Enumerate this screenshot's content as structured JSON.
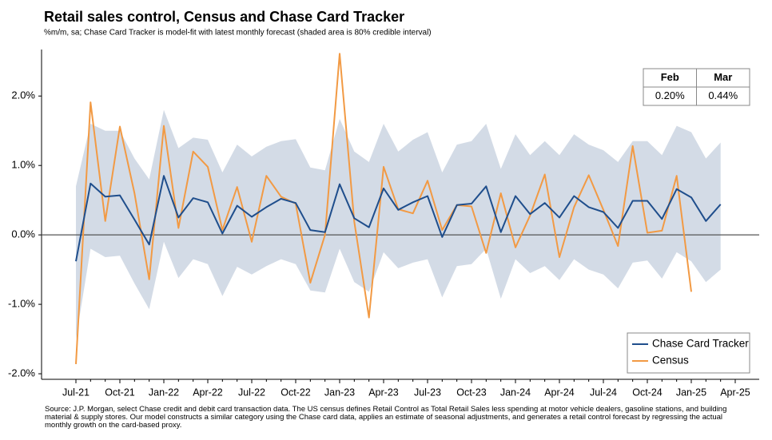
{
  "chart_data": {
    "type": "line",
    "title": "Retail sales control, Census and Chase Card Tracker",
    "subtitle": "%m/m, sa; Chase Card Tracker is model-fit with latest monthly forecast (shaded area is 80% credible interval)",
    "source": "Source: J.P. Morgan, select Chase credit and debit card transaction data. The US census defines Retail Control as Total Retail Sales less spending at motor vehicle dealers, gasoline stations, and building material & supply stores. Our model constructs a similar category using the Chase card data, applies an estimate of seasonal adjustments, and generates a retail control forecast by regressing the actual monthly growth on the card-based proxy.",
    "categories": [
      "Jul-21",
      null,
      null,
      "Oct-21",
      null,
      null,
      "Jan-22",
      null,
      null,
      "Apr-22",
      null,
      null,
      "Jul-22",
      null,
      null,
      "Oct-22",
      null,
      null,
      "Jan-23",
      null,
      null,
      "Apr-23",
      null,
      null,
      "Jul-23",
      null,
      null,
      "Oct-23",
      null,
      null,
      "Jan-24",
      null,
      null,
      "Apr-24",
      null,
      null,
      "Jul-24",
      null,
      null,
      "Oct-24",
      null,
      null,
      "Jan-25",
      null,
      null,
      "Apr-25"
    ],
    "series": [
      {
        "name": "Chase Card Tracker",
        "color": "#1f4e8c",
        "values": [
          -0.38,
          0.74,
          0.55,
          0.57,
          0.22,
          -0.14,
          0.85,
          0.25,
          0.53,
          0.47,
          0.02,
          0.42,
          0.26,
          0.4,
          0.52,
          0.46,
          0.07,
          0.04,
          0.73,
          0.24,
          0.11,
          0.67,
          0.36,
          0.47,
          0.56,
          -0.03,
          0.43,
          0.45,
          0.7,
          0.04,
          0.56,
          0.3,
          0.46,
          0.25,
          0.56,
          0.4,
          0.33,
          0.1,
          0.49,
          0.49,
          0.23,
          0.66,
          0.54,
          0.2,
          0.44,
          null
        ]
      },
      {
        "name": "Census",
        "color": "#f29a44",
        "values": [
          -1.86,
          1.91,
          0.2,
          1.56,
          0.6,
          -0.64,
          1.57,
          0.1,
          1.2,
          0.98,
          0.07,
          0.69,
          -0.1,
          0.85,
          0.55,
          0.45,
          -0.69,
          0.0,
          2.61,
          0.19,
          -1.19,
          0.98,
          0.37,
          0.31,
          0.78,
          0.07,
          0.43,
          0.41,
          -0.26,
          0.6,
          -0.18,
          0.28,
          0.87,
          -0.32,
          0.4,
          0.86,
          0.36,
          -0.16,
          1.28,
          0.03,
          0.06,
          0.85,
          -0.82,
          null,
          null,
          null
        ]
      }
    ],
    "band": {
      "color": "#d3dbe6",
      "upper": [
        0.7,
        1.6,
        1.5,
        1.5,
        1.1,
        0.8,
        1.8,
        1.25,
        1.4,
        1.37,
        0.9,
        1.3,
        1.13,
        1.27,
        1.35,
        1.38,
        0.97,
        0.93,
        1.67,
        1.2,
        1.05,
        1.6,
        1.2,
        1.37,
        1.48,
        0.9,
        1.3,
        1.35,
        1.6,
        0.95,
        1.45,
        1.15,
        1.35,
        1.15,
        1.45,
        1.3,
        1.22,
        1.05,
        1.35,
        1.35,
        1.15,
        1.57,
        1.48,
        1.1,
        1.33,
        null
      ],
      "lower": [
        -1.5,
        -0.2,
        -0.32,
        -0.3,
        -0.7,
        -1.07,
        -0.1,
        -0.62,
        -0.35,
        -0.42,
        -0.88,
        -0.46,
        -0.57,
        -0.45,
        -0.35,
        -0.42,
        -0.8,
        -0.83,
        -0.2,
        -0.68,
        -0.82,
        -0.25,
        -0.48,
        -0.4,
        -0.35,
        -0.9,
        -0.45,
        -0.42,
        -0.2,
        -0.92,
        -0.35,
        -0.55,
        -0.45,
        -0.65,
        -0.35,
        -0.5,
        -0.57,
        -0.77,
        -0.4,
        -0.37,
        -0.63,
        -0.25,
        -0.38,
        -0.68,
        -0.5,
        null
      ]
    },
    "ylim": [
      -2.08,
      2.67
    ],
    "yticks": [
      {
        "value": -2,
        "label": "-2.0%"
      },
      {
        "value": -1,
        "label": "-1.0%"
      },
      {
        "value": 0,
        "label": "0.0%"
      },
      {
        "value": 1,
        "label": "1.0%"
      },
      {
        "value": 2,
        "label": "2.0%"
      }
    ],
    "zero_line": true,
    "legend": "lower right",
    "table": {
      "columns": [
        "Feb",
        "Mar"
      ],
      "cells": [
        "0.20%",
        "0.44%"
      ]
    }
  }
}
